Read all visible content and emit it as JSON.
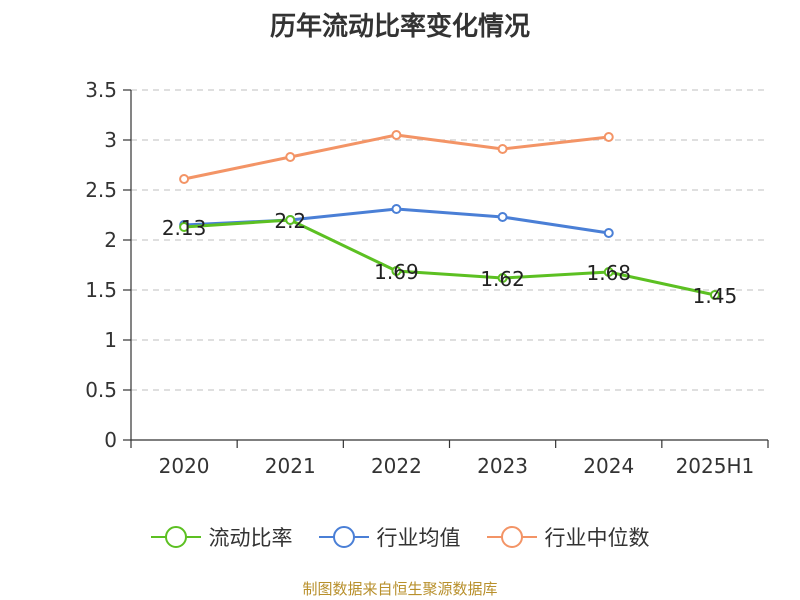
{
  "chart_data": {
    "type": "line",
    "title": "历年流动比率变化情况",
    "categories": [
      "2020",
      "2021",
      "2022",
      "2023",
      "2024",
      "2025H1"
    ],
    "ylim": [
      0,
      3.5
    ],
    "yticks": [
      "0",
      "0.5",
      "1",
      "1.5",
      "2",
      "2.5",
      "3",
      "3.5"
    ],
    "grid": true,
    "legend_position": "bottom",
    "series": [
      {
        "name": "流动比率",
        "color": "#5cc022",
        "values": [
          2.13,
          2.2,
          1.69,
          1.62,
          1.68,
          1.45
        ],
        "data_labels": [
          "2.13",
          "2.2",
          "1.69",
          "1.62",
          "1.68",
          "1.45"
        ]
      },
      {
        "name": "行业均值",
        "color": "#4a7fd6",
        "values": [
          2.15,
          2.2,
          2.31,
          2.23,
          2.07,
          null
        ]
      },
      {
        "name": "行业中位数",
        "color": "#f39466",
        "values": [
          2.61,
          2.83,
          3.05,
          2.91,
          3.03,
          null
        ]
      }
    ]
  },
  "source_note": "制图数据来自恒生聚源数据库"
}
